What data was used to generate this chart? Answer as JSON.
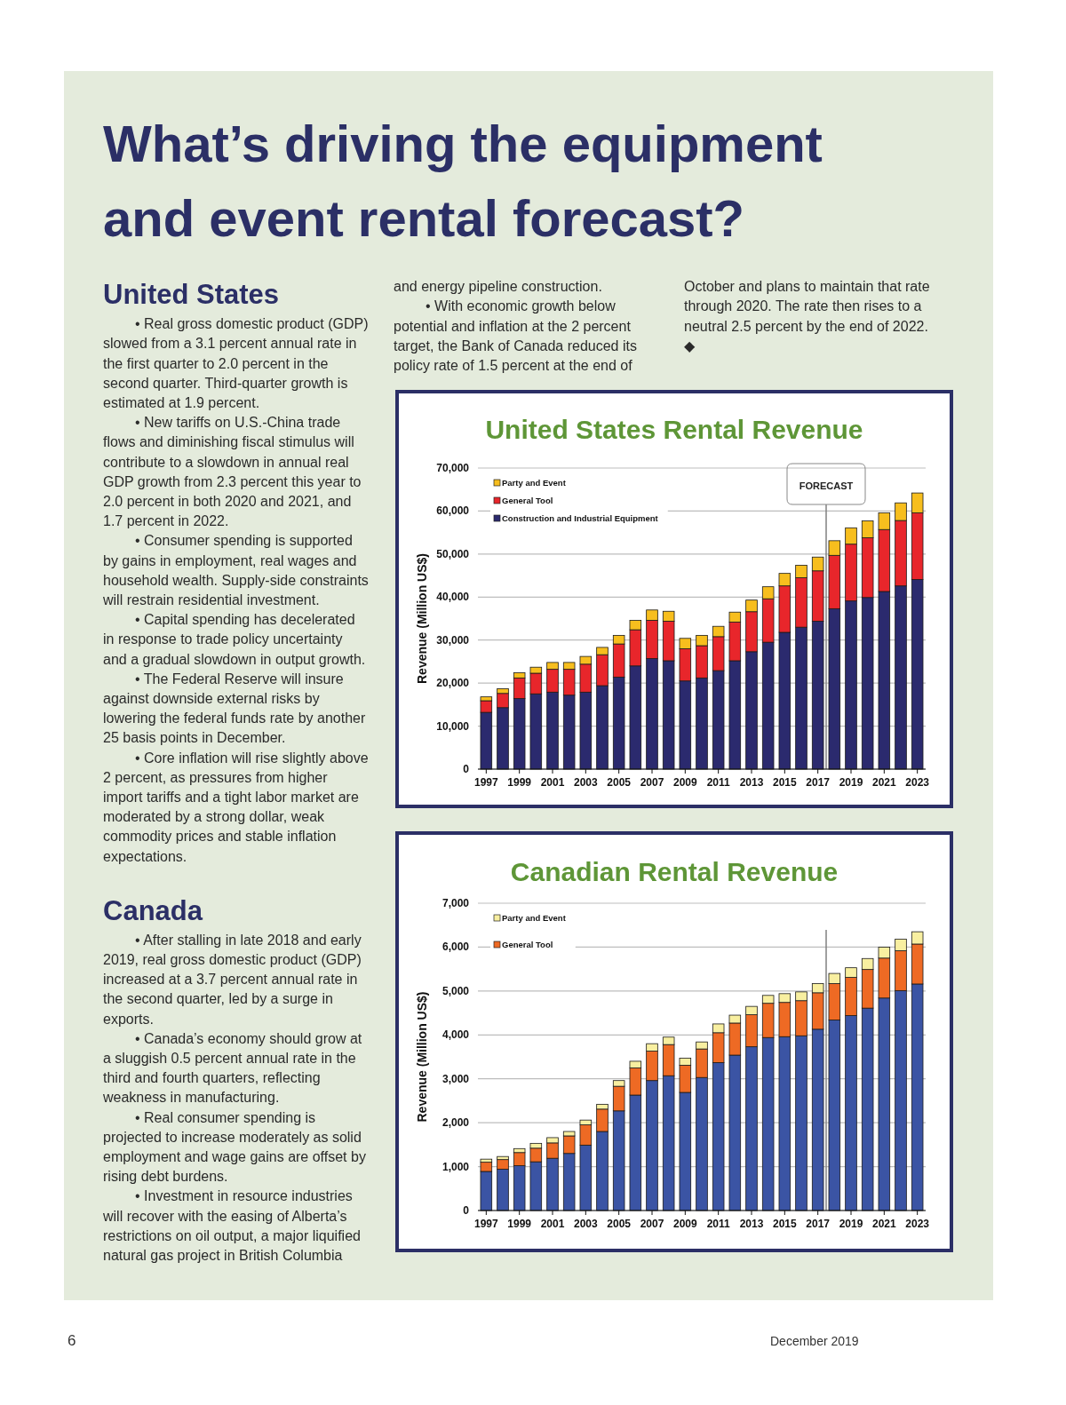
{
  "chart_data": [
    {
      "type": "other",
      "title": "What’s driving the equipment and event rental forecast?",
      "subtitle": "United States",
      "annotations": [
        "• Real gross domestic product (GDP) slowed from a 3.1 percent annual rate in the first quarter to 2.0 percent in the second quarter. Third-quarter growth is estimated at 1.9 percent.",
        "• New tariffs on U.S.-China trade flows and diminishing fiscal stimulus will contribute to a slowdown in annual real GDP growth from 2.3 percent this year to 2.0 percent in both 2020 and 2021, and 1.7 percent in 2022.",
        "• Consumer spending is supported by gains in employment, real wages and household wealth. Supply-side constraints will restrain residential investment.",
        "• Capital spending has decelerated in response to trade policy uncertainty and a gradual slowdown in output growth.",
        "• The Federal Reserve will insure against downside external risks by lowering the federal funds rate by another 25 basis points in December.",
        "• Core inflation will rise slightly above 2 percent, as pressures from higher import tariffs and a tight labor market are moderated by a strong dollar, weak commodity prices and stable inflation expectations."
      ]
    },
    {
      "type": "other",
      "title": "Canada",
      "annotations": [
        "• After stalling in late 2018 and early 2019, real gross domestic product (GDP) increased at a 3.7 percent annual rate in the second quarter, led by a surge in exports.",
        "• Canada’s economy should grow at a sluggish 0.5 percent annual rate in the third and fourth quarters, reflecting weakness in manufacturing.",
        "• Real consumer spending is projected to increase moderately as solid employment and wage gains are offset by rising debt burdens.",
        "• Investment in resource industries will recover with the easing of Alberta’s restrictions on oil output, a major liquified natural gas project in British Columbia and energy pipeline construction.",
        "• With economic growth below potential and inflation at the 2 percent target, the Bank of Canada reduced its policy rate of 1.5 percent at the end of October and plans to maintain that rate through 2020. The rate then rises to a neutral 2.5 percent by the end of 2022. ◆"
      ]
    },
    {
      "type": "bar",
      "title": "United States Rental Revenue",
      "ylabel": "Revenue (Million US$)",
      "stacked": true,
      "legend": "top left",
      "grid": "y",
      "x": [
        1997,
        1998,
        1999,
        2000,
        2001,
        2002,
        2003,
        2004,
        2005,
        2006,
        2007,
        2008,
        2009,
        2010,
        2011,
        2012,
        2013,
        2014,
        2015,
        2016,
        2017,
        2018,
        2019,
        2020,
        2021,
        2022,
        2023
      ],
      "xlim": [
        1996.5,
        2023.5
      ],
      "xticks": [
        1997,
        1999,
        2001,
        2003,
        2005,
        2007,
        2009,
        2011,
        2013,
        2015,
        2017,
        2019,
        2021,
        2023
      ],
      "ylim": [
        0,
        70000
      ],
      "yticks": [
        {
          "value": 0,
          "label": "0"
        },
        {
          "value": 10000,
          "label": "10,000"
        },
        {
          "value": 20000,
          "label": "20,000"
        },
        {
          "value": 30000,
          "label": "30,000"
        },
        {
          "value": 40000,
          "label": "40,000"
        },
        {
          "value": 50000,
          "label": "50,000"
        },
        {
          "value": 60000,
          "label": "60,000"
        },
        {
          "value": 70000,
          "label": "70,000"
        }
      ],
      "ref_lines": [
        {
          "axis": "x",
          "value": 2017.5,
          "label": "FORECAST",
          "color": "#808080"
        }
      ],
      "series": [
        {
          "name": "Construction and Industrial Equipment",
          "color": "#2b2a6e",
          "values": [
            13200,
            14300,
            16400,
            17500,
            17900,
            17200,
            17900,
            19400,
            21400,
            24000,
            25700,
            25200,
            20500,
            21200,
            22900,
            25200,
            27300,
            29500,
            31800,
            33000,
            34400,
            37300,
            39100,
            39900,
            41300,
            42600,
            44100
          ]
        },
        {
          "name": "General Tool",
          "color": "#e8262b",
          "values": [
            2700,
            3300,
            4800,
            4800,
            5300,
            6000,
            6500,
            7200,
            7700,
            8400,
            8900,
            9200,
            7500,
            7500,
            7900,
            9000,
            9300,
            10100,
            10800,
            11500,
            11700,
            12400,
            13200,
            13900,
            14400,
            15200,
            15500
          ]
        },
        {
          "name": "Party and Event",
          "color": "#f7be1e",
          "values": [
            900,
            1100,
            1200,
            1400,
            1600,
            1600,
            1800,
            1700,
            2000,
            2200,
            2400,
            2300,
            2400,
            2400,
            2400,
            2300,
            2700,
            2800,
            2900,
            2900,
            3200,
            3400,
            3800,
            3900,
            3900,
            4100,
            4600
          ]
        }
      ]
    },
    {
      "type": "bar",
      "title": "Canadian Rental Revenue",
      "ylabel": "Revenue (Million US$)",
      "stacked": true,
      "legend": "top left",
      "grid": "y",
      "x": [
        1997,
        1998,
        1999,
        2000,
        2001,
        2002,
        2003,
        2004,
        2005,
        2006,
        2007,
        2008,
        2009,
        2010,
        2011,
        2012,
        2013,
        2014,
        2015,
        2016,
        2017,
        2018,
        2019,
        2020,
        2021,
        2022,
        2023
      ],
      "xlim": [
        1996.5,
        2023.5
      ],
      "xticks": [
        1997,
        1999,
        2001,
        2003,
        2005,
        2007,
        2009,
        2011,
        2013,
        2015,
        2017,
        2019,
        2021,
        2023
      ],
      "ylim": [
        0,
        7000
      ],
      "yticks": [
        {
          "value": 0,
          "label": "0"
        },
        {
          "value": 1000,
          "label": "1,000"
        },
        {
          "value": 2000,
          "label": "2,000"
        },
        {
          "value": 3000,
          "label": "3,000"
        },
        {
          "value": 4000,
          "label": "4,000"
        },
        {
          "value": 5000,
          "label": "5,000"
        },
        {
          "value": 6000,
          "label": "6,000"
        },
        {
          "value": 7000,
          "label": "7,000"
        }
      ],
      "ref_lines": [
        {
          "axis": "x",
          "value": 2017.5,
          "label": null,
          "color": "#808080"
        }
      ],
      "series": [
        {
          "color": "#3b54a4",
          "values": [
            890,
            940,
            1020,
            1110,
            1190,
            1300,
            1490,
            1800,
            2270,
            2630,
            2960,
            3070,
            2690,
            3030,
            3370,
            3540,
            3730,
            3940,
            3960,
            3980,
            4130,
            4340,
            4440,
            4610,
            4840,
            5010,
            5160
          ]
        },
        {
          "name": "General Tool",
          "color": "#ee6a24",
          "values": [
            210,
            220,
            300,
            310,
            350,
            400,
            460,
            510,
            560,
            620,
            670,
            710,
            620,
            650,
            680,
            730,
            730,
            780,
            780,
            800,
            830,
            830,
            870,
            880,
            910,
            910,
            910
          ]
        },
        {
          "name": "Party and Event",
          "color": "#f8efa0",
          "values": [
            70,
            70,
            90,
            110,
            120,
            100,
            110,
            110,
            130,
            150,
            170,
            170,
            160,
            160,
            200,
            180,
            190,
            180,
            200,
            200,
            210,
            230,
            220,
            250,
            250,
            260,
            280
          ]
        }
      ]
    },
    {
      "type": "other",
      "annotations": [
        "6",
        "December 2019"
      ]
    }
  ]
}
